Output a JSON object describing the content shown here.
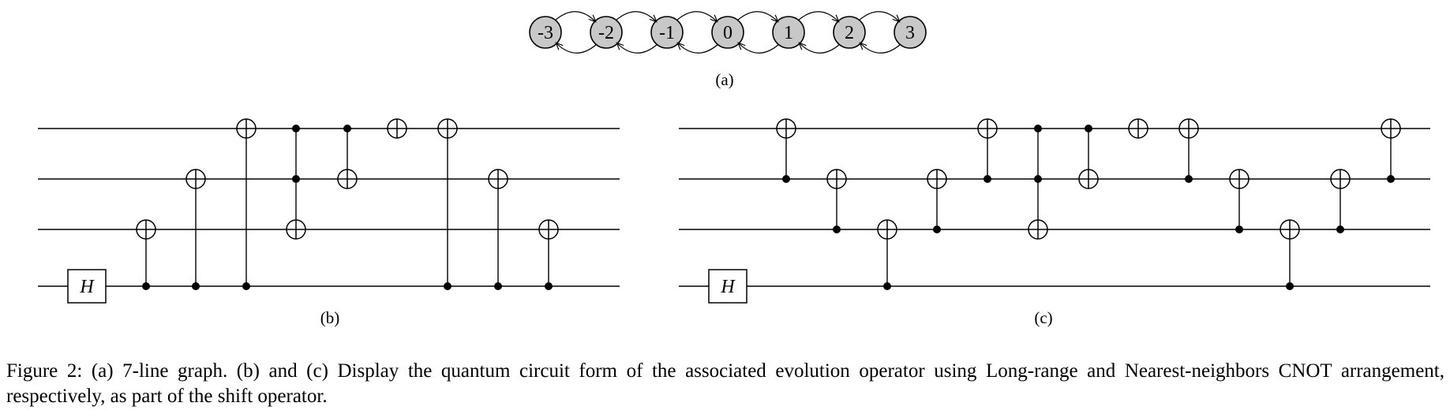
{
  "graph": {
    "nodes": [
      "-3",
      "-2",
      "-1",
      "0",
      "1",
      "2",
      "3"
    ],
    "sublabel": "(a)"
  },
  "circuit_b": {
    "sublabel": "(b)",
    "h_gate_label": "H",
    "gates": [
      {
        "type": "cnot",
        "control": 3,
        "target": 2
      },
      {
        "type": "cnot",
        "control": 3,
        "target": 1
      },
      {
        "type": "cnot",
        "control": 3,
        "target": 0
      },
      {
        "type": "toffoli",
        "controls": [
          0,
          1
        ],
        "target": 2
      },
      {
        "type": "cnot",
        "control": 0,
        "target": 1
      },
      {
        "type": "x",
        "target": 0
      },
      {
        "type": "cnot",
        "control": 3,
        "target": 0
      },
      {
        "type": "cnot",
        "control": 3,
        "target": 1
      },
      {
        "type": "cnot",
        "control": 3,
        "target": 2
      }
    ]
  },
  "circuit_c": {
    "sublabel": "(c)",
    "h_gate_label": "H",
    "gates": [
      {
        "type": "cnot",
        "control": 1,
        "target": 0
      },
      {
        "type": "cnot",
        "control": 2,
        "target": 1
      },
      {
        "type": "cnot",
        "control": 3,
        "target": 2
      },
      {
        "type": "cnot",
        "control": 2,
        "target": 1
      },
      {
        "type": "cnot",
        "control": 1,
        "target": 0
      },
      {
        "type": "toffoli",
        "controls": [
          0,
          1
        ],
        "target": 2
      },
      {
        "type": "cnot",
        "control": 0,
        "target": 1
      },
      {
        "type": "x",
        "target": 0
      },
      {
        "type": "cnot",
        "control": 1,
        "target": 0
      },
      {
        "type": "cnot",
        "control": 2,
        "target": 1
      },
      {
        "type": "cnot",
        "control": 3,
        "target": 2
      },
      {
        "type": "cnot",
        "control": 2,
        "target": 1
      },
      {
        "type": "cnot",
        "control": 1,
        "target": 0
      }
    ]
  },
  "caption": "Figure 2: (a) 7-line graph. (b) and (c) Display the quantum circuit form of the associated evolution operator using Long-range and Nearest-neighbors CNOT arrangement, respectively, as part of the shift operator."
}
